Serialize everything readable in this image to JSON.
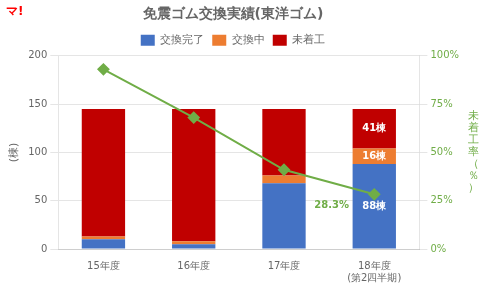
{
  "chart_data": {
    "type": "bar",
    "title": "免震ゴム交換実績(東洋ゴム)",
    "categories": [
      "15年度",
      "16年度",
      "17年度",
      "18年度\n(第2四半期)"
    ],
    "stacked": true,
    "grid": true,
    "legend": "top",
    "ylabel": "(棟)",
    "y2label": "未\n着\n工\n率\n（\n％\n）",
    "ylim": [
      0,
      200
    ],
    "yticks": [
      0,
      50,
      100,
      150,
      200
    ],
    "y2lim": [
      0,
      100
    ],
    "y2ticks": [
      {
        "value": 0,
        "label": "0%"
      },
      {
        "value": 25,
        "label": "25%"
      },
      {
        "value": 50,
        "label": "50%"
      },
      {
        "value": 75,
        "label": "75%"
      },
      {
        "value": 100,
        "label": "100%"
      }
    ],
    "annotations": [
      {
        "text": "マ!",
        "color": "red"
      }
    ],
    "series": [
      {
        "name": "交換完了",
        "color": "#4472C4",
        "values": [
          10,
          5,
          68,
          88
        ],
        "value_labels": [
          null,
          null,
          null,
          "88棟"
        ]
      },
      {
        "name": "交換中",
        "color": "#ED7D31",
        "values": [
          3,
          3,
          8,
          16
        ],
        "value_labels": [
          null,
          null,
          null,
          "16棟"
        ]
      },
      {
        "name": "未着工",
        "color": "#C00000",
        "values": [
          132,
          137,
          69,
          41
        ],
        "value_labels": [
          null,
          null,
          null,
          "41棟"
        ]
      },
      {
        "type": "line",
        "axis": "y2",
        "color": "#70AD47",
        "marker": "diamond",
        "line_style": "solid",
        "values": [
          93,
          68,
          41,
          28.3
        ],
        "value_labels": [
          null,
          null,
          null,
          "28.3%"
        ]
      }
    ]
  }
}
